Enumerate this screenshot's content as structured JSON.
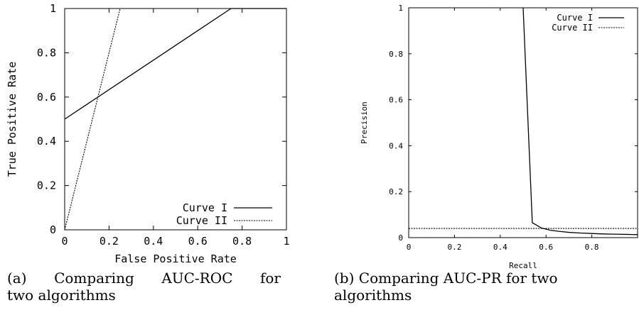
{
  "chart_data": [
    {
      "type": "line",
      "ylabel": "True Positive Rate",
      "xlabel": "False Positive Rate",
      "xlim": [
        0,
        1
      ],
      "ylim": [
        0,
        1
      ],
      "x_ticks": [
        "0",
        "0.2",
        "0.4",
        "0.6",
        "0.8",
        "1"
      ],
      "y_ticks": [
        "0",
        "0.2",
        "0.4",
        "0.6",
        "0.8",
        "1"
      ],
      "legend_position": "bottom-right",
      "series": [
        {
          "name": "Curve I",
          "style": "solid",
          "x": [
            0,
            0.75,
            1
          ],
          "y": [
            0.5,
            1,
            1
          ]
        },
        {
          "name": "Curve II",
          "style": "dotted",
          "x": [
            0,
            0.25,
            1
          ],
          "y": [
            0,
            1,
            1
          ]
        }
      ],
      "caption": {
        "line1": [
          "(a)",
          "Comparing",
          "AUC-ROC",
          "for"
        ],
        "line2": "two algorithms"
      }
    },
    {
      "type": "line",
      "ylabel": "Precision",
      "xlabel": "Recall",
      "xlim": [
        0,
        1
      ],
      "ylim": [
        0,
        1
      ],
      "x_ticks": [
        "0",
        "0.2",
        "0.4",
        "0.6",
        "0.8"
      ],
      "y_ticks": [
        "0",
        "0.2",
        "0.4",
        "0.6",
        "0.8",
        "1"
      ],
      "legend_position": "top-right",
      "series": [
        {
          "name": "Curve I",
          "style": "solid",
          "x": [
            0.5,
            0.54,
            0.58,
            0.62,
            0.66,
            0.7,
            0.75,
            0.8,
            0.85,
            0.9,
            0.95,
            1.0
          ],
          "y": [
            1.0,
            0.065,
            0.042,
            0.032,
            0.027,
            0.023,
            0.02,
            0.018,
            0.016,
            0.015,
            0.014,
            0.013
          ]
        },
        {
          "name": "Curve II",
          "style": "dotted",
          "x": [
            0,
            1
          ],
          "y": [
            0.04,
            0.04
          ]
        }
      ],
      "caption": {
        "line1": "(b) Comparing AUC-PR for two",
        "line2": "algorithms"
      }
    }
  ]
}
